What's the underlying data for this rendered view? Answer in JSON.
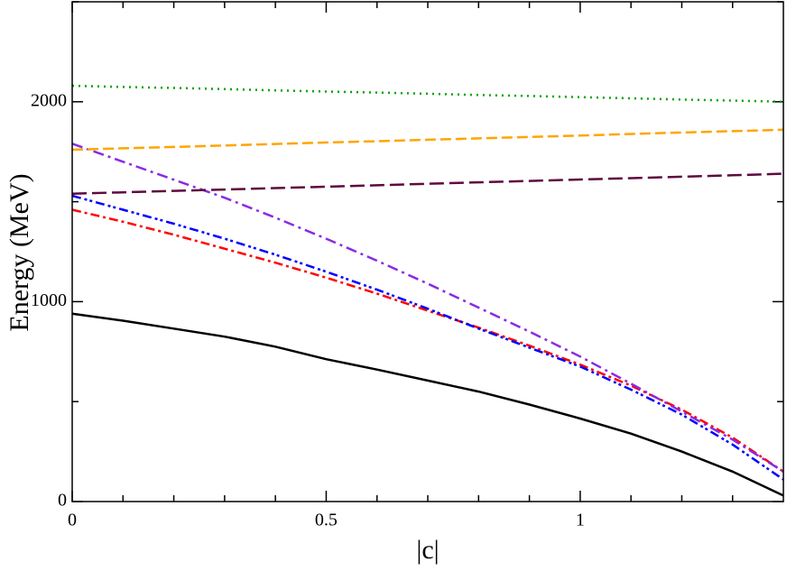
{
  "chart_data": {
    "type": "line",
    "x_label": "|c|",
    "y_label": "Energy (MeV)",
    "x": [
      0,
      0.1,
      0.2,
      0.3,
      0.4,
      0.5,
      0.6,
      0.7,
      0.8,
      0.9,
      1.0,
      1.1,
      1.2,
      1.3,
      1.4
    ],
    "xlim": [
      0,
      1.4
    ],
    "ylim": [
      0,
      2500
    ],
    "xticks": [
      0,
      0.5,
      1
    ],
    "yticks": [
      0,
      1000,
      2000
    ],
    "xminor": [
      0.1,
      0.2,
      0.3,
      0.4,
      0.6,
      0.7,
      0.8,
      0.9,
      1.1,
      1.2,
      1.3
    ],
    "yminor": [
      500,
      1500,
      2500
    ],
    "grid": false,
    "series": [
      {
        "color": "#000000",
        "dash": "",
        "values": [
          940,
          905,
          865,
          825,
          775,
          712,
          660,
          605,
          550,
          485,
          415,
          340,
          250,
          150,
          30
        ]
      },
      {
        "color": "#ff0000",
        "dash": "10 4 3 4",
        "values": [
          1460,
          1400,
          1335,
          1265,
          1195,
          1120,
          1040,
          955,
          870,
          780,
          685,
          580,
          460,
          320,
          150
        ]
      },
      {
        "color": "#0000ff",
        "dash": "10 4 3 3 3 4",
        "values": [
          1530,
          1460,
          1390,
          1315,
          1235,
          1150,
          1060,
          965,
          865,
          770,
          675,
          560,
          435,
          285,
          110
        ]
      },
      {
        "color": "#8a2be2",
        "dash": "12 5 3 5",
        "values": [
          1790,
          1700,
          1610,
          1520,
          1420,
          1315,
          1205,
          1090,
          970,
          850,
          725,
          590,
          450,
          310,
          150
        ]
      },
      {
        "color": "#5e0a3f",
        "dash": "16 6",
        "values": [
          1540,
          1547,
          1554,
          1561,
          1568,
          1575,
          1582,
          1590,
          1597,
          1604,
          1611,
          1618,
          1625,
          1632,
          1640
        ]
      },
      {
        "color": "#ffa500",
        "dash": "12 5",
        "values": [
          1760,
          1767,
          1774,
          1781,
          1789,
          1796,
          1803,
          1810,
          1817,
          1824,
          1831,
          1839,
          1846,
          1853,
          1860
        ]
      },
      {
        "color": "#00a000",
        "dash": "2 5",
        "values": [
          2080,
          2074,
          2069,
          2063,
          2057,
          2051,
          2046,
          2040,
          2034,
          2029,
          2023,
          2017,
          2011,
          2006,
          2000
        ]
      }
    ]
  }
}
